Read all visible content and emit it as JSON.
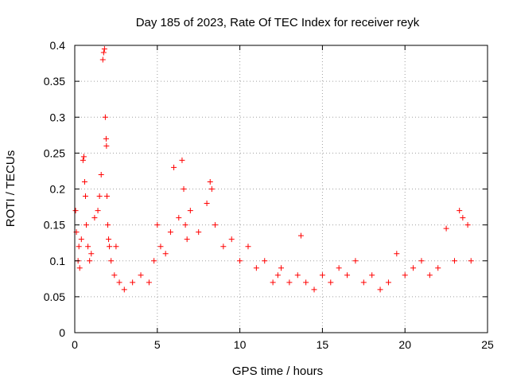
{
  "chart_data": {
    "type": "scatter",
    "title": "Day 185 of 2023, Rate Of TEC Index for receiver reyk",
    "xlabel": "GPS time / hours",
    "ylabel": "ROTI / TECUs",
    "xlim": [
      0,
      25
    ],
    "ylim": [
      0,
      0.4
    ],
    "x_ticks": [
      "0",
      "5",
      "10",
      "15",
      "20",
      "25"
    ],
    "y_ticks": [
      "0",
      "0.05",
      "0.1",
      "0.15",
      "0.2",
      "0.25",
      "0.3",
      "0.35",
      "0.4"
    ],
    "grid": true,
    "marker": "plus",
    "color": "#ff0000",
    "series": [
      {
        "x": [
          0.05,
          0.1,
          0.2,
          0.25,
          0.3,
          0.4,
          0.5,
          0.55,
          0.6,
          0.65,
          0.7,
          0.8,
          0.9,
          1.0,
          1.2,
          1.4,
          1.5,
          1.6,
          1.7,
          1.75,
          1.8,
          1.85,
          1.9,
          1.92,
          1.95,
          2.0,
          2.05,
          2.1,
          2.2,
          2.4,
          2.5,
          2.7,
          3.0,
          3.5,
          4.0,
          4.5,
          4.8,
          5.0,
          5.2,
          5.5,
          5.8,
          6.0,
          6.3,
          6.5,
          6.6,
          6.7,
          6.8,
          7.0,
          7.5,
          8.0,
          8.2,
          8.3,
          8.5,
          9.0,
          9.5,
          10.0,
          10.5,
          11.0,
          11.5,
          12.0,
          12.3,
          12.5,
          13.0,
          13.5,
          13.7,
          14.0,
          14.5,
          15.0,
          15.5,
          16.0,
          16.5,
          17.0,
          17.5,
          18.0,
          18.5,
          19.0,
          19.5,
          20.0,
          20.5,
          21.0,
          21.5,
          22.0,
          22.5,
          23.0,
          23.3,
          23.5,
          23.8,
          24.0
        ],
        "y": [
          0.17,
          0.14,
          0.1,
          0.12,
          0.09,
          0.13,
          0.24,
          0.245,
          0.21,
          0.19,
          0.15,
          0.12,
          0.1,
          0.11,
          0.16,
          0.17,
          0.19,
          0.22,
          0.38,
          0.39,
          0.395,
          0.3,
          0.27,
          0.26,
          0.19,
          0.15,
          0.13,
          0.12,
          0.1,
          0.08,
          0.12,
          0.07,
          0.06,
          0.07,
          0.08,
          0.07,
          0.1,
          0.15,
          0.12,
          0.11,
          0.14,
          0.23,
          0.16,
          0.24,
          0.2,
          0.15,
          0.13,
          0.17,
          0.14,
          0.18,
          0.21,
          0.2,
          0.15,
          0.12,
          0.13,
          0.1,
          0.12,
          0.09,
          0.1,
          0.07,
          0.08,
          0.09,
          0.07,
          0.08,
          0.135,
          0.07,
          0.06,
          0.08,
          0.07,
          0.09,
          0.08,
          0.1,
          0.07,
          0.08,
          0.06,
          0.07,
          0.11,
          0.08,
          0.09,
          0.1,
          0.08,
          0.09,
          0.145,
          0.1,
          0.17,
          0.16,
          0.15,
          0.1
        ]
      }
    ]
  }
}
